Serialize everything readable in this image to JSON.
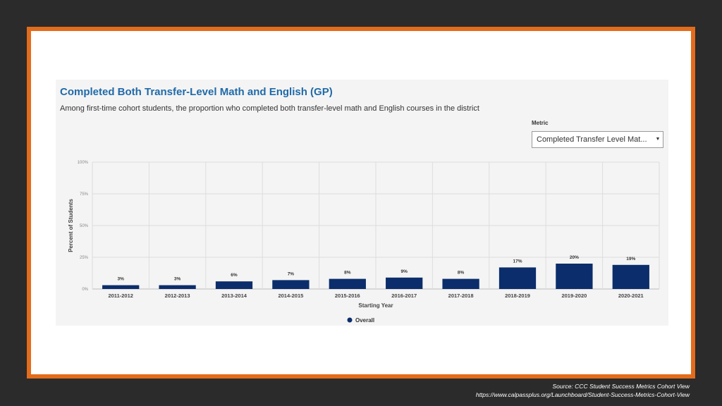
{
  "chart_data": {
    "type": "bar",
    "title": "Completed Both Transfer-Level Math and English (GP)",
    "subtitle": "Among first-time cohort students, the proportion who completed both transfer-level math and English courses in the district",
    "xlabel": "Starting Year",
    "ylabel": "Percent of Students",
    "categories": [
      "2011-2012",
      "2012-2013",
      "2013-2014",
      "2014-2015",
      "2015-2016",
      "2016-2017",
      "2017-2018",
      "2018-2019",
      "2019-2020",
      "2020-2021"
    ],
    "series": [
      {
        "name": "Overall",
        "values": [
          3,
          3,
          6,
          7,
          8,
          9,
          8,
          17,
          20,
          19
        ],
        "labels": [
          "3%",
          "3%",
          "6%",
          "7%",
          "8%",
          "9%",
          "8%",
          "17%",
          "20%",
          "19%"
        ],
        "color": "#0b2d6b"
      }
    ],
    "ylim": [
      0,
      100
    ],
    "yticks": [
      0,
      25,
      50,
      75,
      100
    ],
    "ytick_labels": [
      "0%",
      "25%",
      "50%",
      "75%",
      "100%"
    ],
    "grid": true,
    "legend": "bottom-center"
  },
  "metric": {
    "label": "Metric",
    "value": "Completed Transfer Level Mat..."
  },
  "source": {
    "line1": "Source:  CCC Student Success Metrics Cohort View",
    "line2": "https://www.calpassplus.org/Launchboard/Student-Success-Metrics-Cohort-View"
  },
  "colors": {
    "accent_border": "#e36c1c",
    "title": "#1f6aa8",
    "bar": "#0b2d6b"
  }
}
